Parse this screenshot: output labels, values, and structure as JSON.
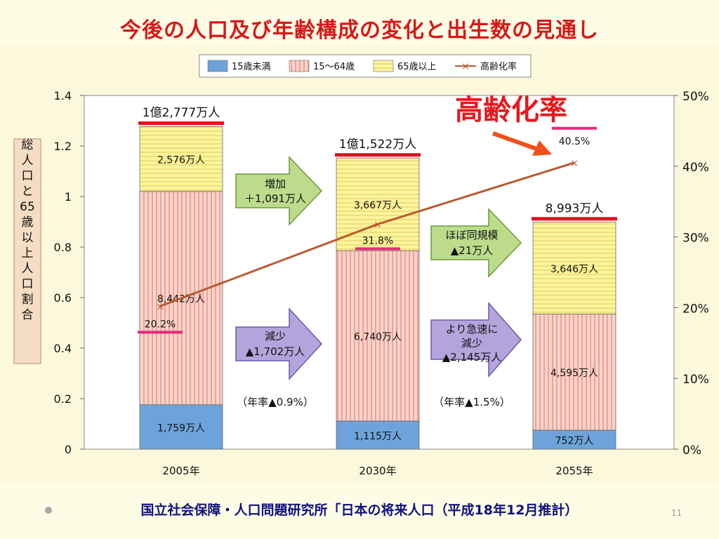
{
  "slide": {
    "title": "今後の人口及び年齢構成の変化と出生数の見通し",
    "source": "国立社会保障・人口問題研究所「日本の将来人口（平成18年12月推計）",
    "page_number": "11"
  },
  "chart_data": {
    "type": "bar",
    "stacked": true,
    "categories": [
      "2005年",
      "2030年",
      "2055年"
    ],
    "left_axis": {
      "label": "総人口と65歳以上人口割合",
      "ylim": [
        0,
        1.4
      ],
      "ticks": [
        0,
        0.2,
        0.4,
        0.6,
        0.8,
        1,
        1.2,
        1.4
      ],
      "tick_labels": [
        "0",
        "0.2",
        "0.4",
        "0.6",
        "0.8",
        "1",
        "1.2",
        "1.4"
      ]
    },
    "right_axis": {
      "ylim": [
        0,
        50
      ],
      "ticks": [
        0,
        10,
        20,
        30,
        40,
        50
      ],
      "tick_labels": [
        "0%",
        "10%",
        "20%",
        "30%",
        "40%",
        "50%"
      ]
    },
    "legend": {
      "placement": "top",
      "items": [
        "15歳未満",
        "15～64歳",
        "65歳以上",
        "高齢化率"
      ]
    },
    "colors": {
      "under15": "#6da3da",
      "working": "#f9d4c8",
      "working_stripe": "#e07070",
      "elderly": "#fbf59c",
      "elderly_stripe": "#e6c85a",
      "line": "#b85a30",
      "total_marker": "#e01020",
      "rate_marker": "#e8287a",
      "arrow_green": "#bcdc8c",
      "arrow_purple": "#b4a4dc"
    },
    "series": [
      {
        "name": "15歳未満",
        "values": [
          0.1759,
          0.1115,
          0.0752
        ],
        "labels": [
          "1,759万人",
          "1,115万人",
          "752万人"
        ]
      },
      {
        "name": "15～64歳",
        "values": [
          0.8442,
          0.674,
          0.4595
        ],
        "labels": [
          "8,442万人",
          "6,740万人",
          "4,595万人"
        ]
      },
      {
        "name": "65歳以上",
        "values": [
          0.2576,
          0.3667,
          0.3646
        ],
        "labels": [
          "2,576万人",
          "3,667万人",
          "3,646万人"
        ]
      }
    ],
    "totals": {
      "values": [
        1.2777,
        1.1522,
        0.8993
      ],
      "labels": [
        "1億2,777万人",
        "1億1,522万人",
        "8,993万人"
      ]
    },
    "aging_rate": {
      "name": "高齢化率",
      "values": [
        20.2,
        31.8,
        40.5
      ],
      "labels": [
        "20.2%",
        "31.8%",
        "40.5%"
      ]
    },
    "callout_title": "高齢化率",
    "annotations": {
      "increase": {
        "line1": "増加",
        "line2": "＋1,091万人"
      },
      "decrease1": {
        "line1": "減少",
        "line2": "▲1,702万人",
        "note": "（年率▲0.9%）"
      },
      "same": {
        "line1": "ほぼ同規模",
        "line2": "▲21万人"
      },
      "decrease2": {
        "line1": "より急速に",
        "line2": "減少",
        "line3": "▲2,145万人",
        "note": "（年率▲1.5%）"
      }
    }
  }
}
